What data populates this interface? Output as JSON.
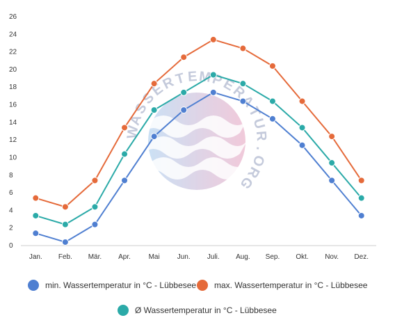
{
  "watermark": "WASSERTEMPERATUR.ORG",
  "chart_data": {
    "type": "line",
    "categories": [
      "Jan.",
      "Feb.",
      "Mär.",
      "Apr.",
      "Mai",
      "Jun.",
      "Juli.",
      "Aug.",
      "Sep.",
      "Okt.",
      "Nov.",
      "Dez."
    ],
    "ylim": [
      0,
      26
    ],
    "yticks": [
      0,
      2,
      4,
      6,
      8,
      10,
      12,
      14,
      16,
      18,
      20,
      22,
      24,
      26
    ],
    "grid": false,
    "legend_position": "bottom",
    "series": [
      {
        "name": "min. Wassertemperatur in °C - Lübbesee",
        "color": "#4f7fd1",
        "values": [
          1.4,
          0.4,
          2.4,
          7.4,
          12.4,
          15.4,
          17.4,
          16.4,
          14.4,
          11.4,
          7.4,
          3.4
        ]
      },
      {
        "name": "max. Wassertemperatur in °C - Lübbesee",
        "color": "#e56a3a",
        "values": [
          5.4,
          4.4,
          7.4,
          13.4,
          18.4,
          21.4,
          23.4,
          22.4,
          20.4,
          16.4,
          12.4,
          7.4
        ]
      },
      {
        "name": "Ø Wassertemperatur in °C - Lübbesee",
        "color": "#2baaa8",
        "values": [
          3.4,
          2.4,
          4.4,
          10.4,
          15.4,
          17.4,
          19.4,
          18.4,
          16.4,
          13.4,
          9.4,
          5.4
        ]
      }
    ]
  }
}
